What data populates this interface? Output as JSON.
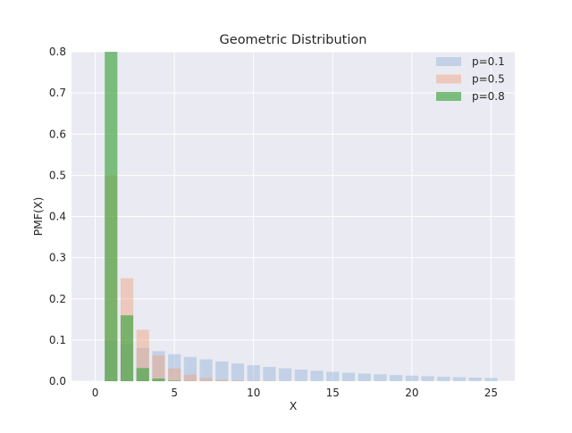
{
  "chart_data": {
    "type": "bar",
    "title": "Geometric Distribution",
    "xlabel": "X",
    "ylabel": "PMF(X)",
    "xlim": [
      -1.5,
      26.5
    ],
    "ylim": [
      0,
      0.8
    ],
    "xticks": [
      0,
      5,
      10,
      15,
      20,
      25
    ],
    "yticks": [
      0.0,
      0.1,
      0.2,
      0.3,
      0.4,
      0.5,
      0.6,
      0.7,
      0.8
    ],
    "x": [
      1,
      2,
      3,
      4,
      5,
      6,
      7,
      8,
      9,
      10,
      11,
      12,
      13,
      14,
      15,
      16,
      17,
      18,
      19,
      20,
      21,
      22,
      23,
      24,
      25
    ],
    "series": [
      {
        "name": "p=0.1",
        "color": "#92b4d6",
        "opacity": 0.45,
        "values": [
          0.1,
          0.09,
          0.081,
          0.0729,
          0.0656,
          0.059,
          0.0531,
          0.0478,
          0.043,
          0.0387,
          0.0349,
          0.0314,
          0.0282,
          0.0254,
          0.0229,
          0.0206,
          0.0185,
          0.0167,
          0.015,
          0.0135,
          0.0122,
          0.0109,
          0.0098,
          0.0089,
          0.008
        ]
      },
      {
        "name": "p=0.5",
        "color": "#f0a27a",
        "opacity": 0.45,
        "values": [
          0.5,
          0.25,
          0.125,
          0.0625,
          0.0313,
          0.0156,
          0.0078,
          0.0039,
          0.002,
          0.001,
          0.0005,
          0.0002,
          0.0001,
          0,
          0,
          0,
          0,
          0,
          0,
          0,
          0,
          0,
          0,
          0,
          0
        ]
      },
      {
        "name": "p=0.8",
        "color": "#4aa84a",
        "opacity": 0.7,
        "values": [
          0.8,
          0.16,
          0.032,
          0.0064,
          0.0013,
          0.0003,
          0.0001,
          0,
          0,
          0,
          0,
          0,
          0,
          0,
          0,
          0,
          0,
          0,
          0,
          0,
          0,
          0,
          0,
          0,
          0
        ]
      }
    ],
    "grid": true,
    "background": "#eaeaf2",
    "legend_position": "top-right"
  }
}
